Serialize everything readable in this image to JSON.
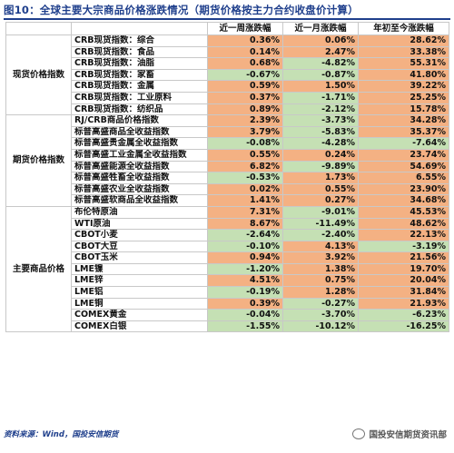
{
  "title": "图10：全球主要大宗商品价格涨跌情况（期货价格按主力合约收盘价计算）",
  "headers": [
    "",
    "",
    "近一周涨跌幅",
    "近一月涨跌幅",
    "年初至今涨跌幅"
  ],
  "groups": [
    {
      "label": "现货价格指数",
      "rows": [
        {
          "name": "CRB现货指数：综合",
          "values": [
            "0.36%",
            "0.06%",
            "28.62%"
          ]
        },
        {
          "name": "CRB现货指数：食品",
          "values": [
            "0.14%",
            "2.47%",
            "33.38%"
          ]
        },
        {
          "name": "CRB现货指数：油脂",
          "values": [
            "0.68%",
            "-4.82%",
            "55.31%"
          ]
        },
        {
          "name": "CRB现货指数：家畜",
          "values": [
            "-0.67%",
            "-0.87%",
            "41.80%"
          ]
        },
        {
          "name": "CRB现货指数：金属",
          "values": [
            "0.59%",
            "1.50%",
            "39.22%"
          ]
        },
        {
          "name": "CRB现货指数：工业原料",
          "values": [
            "0.37%",
            "-1.71%",
            "25.25%"
          ]
        },
        {
          "name": "CRB现货指数：纺织品",
          "values": [
            "0.89%",
            "-2.12%",
            "15.78%"
          ]
        }
      ]
    },
    {
      "label": "期货价格指数",
      "rows": [
        {
          "name": "RJ/CRB商品价格指数",
          "values": [
            "2.39%",
            "-3.73%",
            "34.28%"
          ]
        },
        {
          "name": "标普高盛商品全收益指数",
          "values": [
            "3.79%",
            "-5.83%",
            "35.37%"
          ]
        },
        {
          "name": "标普高盛贵金属全收益指数",
          "values": [
            "-0.08%",
            "-4.28%",
            "-7.64%"
          ]
        },
        {
          "name": "标普高盛工业金属全收益指数",
          "values": [
            "0.55%",
            "0.24%",
            "23.74%"
          ]
        },
        {
          "name": "标普高盛能源全收益指数",
          "values": [
            "6.82%",
            "-9.89%",
            "54.69%"
          ]
        },
        {
          "name": "标普高盛牲畜全收益指数",
          "values": [
            "-0.53%",
            "1.73%",
            "6.55%"
          ]
        },
        {
          "name": "标普高盛农业全收益指数",
          "values": [
            "0.02%",
            "0.55%",
            "23.90%"
          ]
        },
        {
          "name": "标普高盛软商品全收益指数",
          "values": [
            "1.41%",
            "0.27%",
            "34.68%"
          ]
        }
      ]
    },
    {
      "label": "主要商品价格",
      "rows": [
        {
          "name": "布伦特原油",
          "values": [
            "7.31%",
            "-9.01%",
            "45.53%"
          ]
        },
        {
          "name": "WTI原油",
          "values": [
            "8.67%",
            "-11.49%",
            "48.62%"
          ]
        },
        {
          "name": "CBOT小麦",
          "values": [
            "-2.64%",
            "-2.40%",
            "22.13%"
          ]
        },
        {
          "name": "CBOT大豆",
          "values": [
            "-0.10%",
            "4.13%",
            "-3.19%"
          ]
        },
        {
          "name": "CBOT玉米",
          "values": [
            "0.94%",
            "3.92%",
            "21.56%"
          ]
        },
        {
          "name": "LME镍",
          "values": [
            "-1.20%",
            "1.38%",
            "19.70%"
          ]
        },
        {
          "name": "LME锌",
          "values": [
            "4.51%",
            "0.75%",
            "20.04%"
          ]
        },
        {
          "name": "LME铝",
          "values": [
            "-0.19%",
            "1.28%",
            "31.84%"
          ]
        },
        {
          "name": "LME铜",
          "values": [
            "0.39%",
            "-0.27%",
            "21.93%"
          ]
        },
        {
          "name": "COMEX黄金",
          "values": [
            "-0.04%",
            "-3.70%",
            "-6.23%"
          ]
        },
        {
          "name": "COMEX白银",
          "values": [
            "-1.55%",
            "-10.12%",
            "-16.25%"
          ]
        }
      ]
    }
  ],
  "colors": {
    "up": "#f4b183",
    "down": "#c5e0b4",
    "title": "#1f3f8c"
  },
  "source": "资料来源：Wind，国投安信期货",
  "watermark": "国投安信期货资讯部",
  "watermark_icon": "wechat-icon"
}
